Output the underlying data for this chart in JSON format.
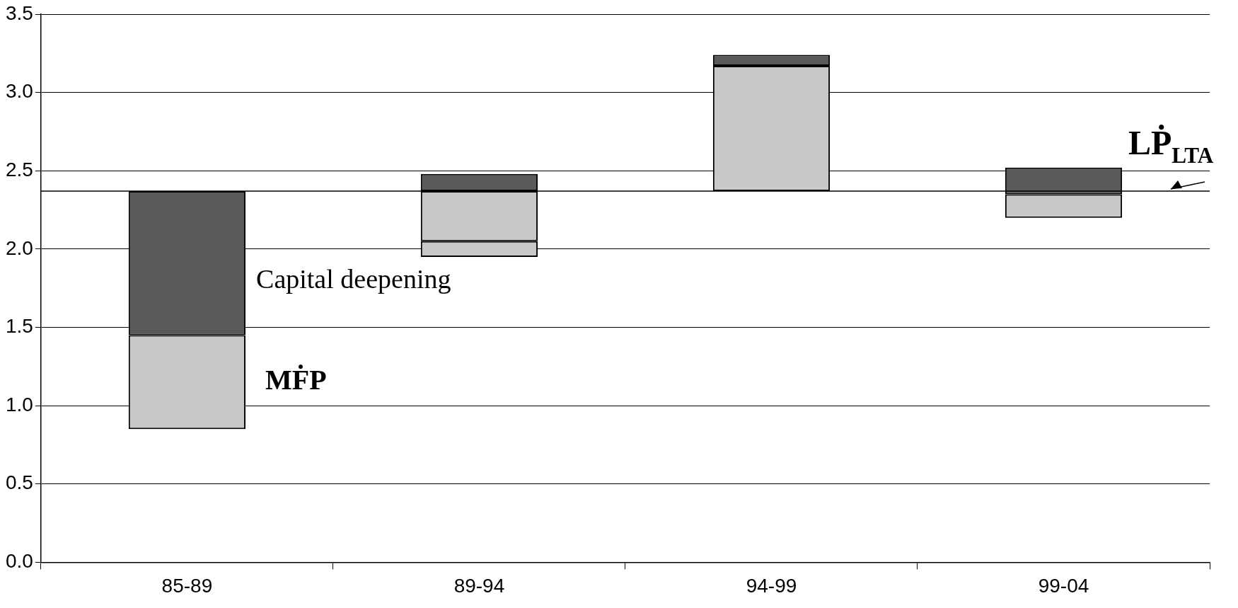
{
  "chart_data": {
    "type": "bar",
    "categories": [
      "85-89",
      "89-94",
      "94-99",
      "99-04"
    ],
    "series": [
      {
        "name": "MḞP",
        "color": "#c8c8c8",
        "base": [
          0.85,
          1.95,
          2.37,
          2.2
        ],
        "values": [
          0.6,
          0.1,
          0.8,
          0.15
        ]
      },
      {
        "color": "#c8c8c8",
        "base": [
          null,
          2.05,
          null,
          null
        ],
        "values": [
          null,
          0.32,
          null,
          null
        ]
      },
      {
        "name": "Capital deepening",
        "color": "#5a5a5a",
        "base": [
          1.45,
          2.37,
          3.17,
          2.35
        ],
        "values": [
          0.92,
          0.11,
          0.07,
          0.17
        ]
      }
    ],
    "ylim": [
      0,
      3.5
    ],
    "yticks": [
      {
        "value": 0,
        "label": "0.0"
      },
      {
        "value": 0.5,
        "label": "0.5"
      },
      {
        "value": 1,
        "label": "1.0"
      },
      {
        "value": 1.5,
        "label": "1.5"
      },
      {
        "value": 2,
        "label": "2.0"
      },
      {
        "value": 2.5,
        "label": "2.5"
      },
      {
        "value": 3,
        "label": "3.0"
      },
      {
        "value": 3.5,
        "label": "3.5"
      }
    ],
    "grid": "y",
    "legend": false,
    "ref_lines": [
      {
        "axis": "y",
        "value": 2.37,
        "label": "LṖ$_{LTA}$",
        "color": "#000000"
      }
    ]
  }
}
